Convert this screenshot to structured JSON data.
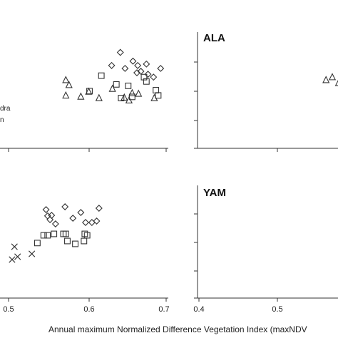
{
  "chart_data": [
    {
      "type": "scatter",
      "title": "",
      "xlim": [
        0.45,
        0.7
      ],
      "ylim": [
        0,
        4
      ],
      "legend": [
        "dra",
        "n"
      ],
      "legend_placement": "left",
      "series": [
        {
          "marker": "triangle",
          "points": [
            [
              0.573,
              2.35
            ],
            [
              0.577,
              2.18
            ],
            [
              0.573,
              1.82
            ],
            [
              0.592,
              1.78
            ],
            [
              0.602,
              1.95
            ],
            [
              0.615,
              1.73
            ],
            [
              0.632,
              2.05
            ],
            [
              0.647,
              1.75
            ],
            [
              0.653,
              1.65
            ],
            [
              0.657,
              1.9
            ],
            [
              0.665,
              1.88
            ],
            [
              0.685,
              1.73
            ]
          ]
        },
        {
          "marker": "square",
          "points": [
            [
              0.603,
              1.97
            ],
            [
              0.618,
              2.5
            ],
            [
              0.637,
              2.2
            ],
            [
              0.643,
              1.73
            ],
            [
              0.652,
              2.15
            ],
            [
              0.657,
              1.77
            ],
            [
              0.672,
              2.45
            ],
            [
              0.675,
              2.3
            ],
            [
              0.687,
              2.0
            ],
            [
              0.69,
              1.82
            ]
          ]
        },
        {
          "marker": "diamond",
          "points": [
            [
              0.631,
              2.85
            ],
            [
              0.642,
              3.3
            ],
            [
              0.648,
              2.75
            ],
            [
              0.658,
              3.0
            ],
            [
              0.664,
              2.85
            ],
            [
              0.668,
              2.65
            ],
            [
              0.675,
              2.9
            ],
            [
              0.684,
              2.45
            ],
            [
              0.693,
              2.75
            ],
            [
              0.677,
              2.55
            ],
            [
              0.663,
              2.6
            ]
          ]
        }
      ]
    },
    {
      "type": "scatter",
      "title": "ALA",
      "xlim": [
        0.4,
        0.6
      ],
      "ylim": [
        0,
        4
      ],
      "series": [
        {
          "marker": "triangle",
          "points": [
            [
              0.562,
              2.35
            ],
            [
              0.57,
              2.45
            ],
            [
              0.578,
              2.25
            ]
          ]
        }
      ]
    },
    {
      "type": "scatter",
      "title": "",
      "xlim": [
        0.45,
        0.7
      ],
      "ylim": [
        0,
        4
      ],
      "series": [
        {
          "marker": "cross",
          "points": [
            [
              0.505,
              1.35
            ],
            [
              0.508,
              1.8
            ],
            [
              0.512,
              1.45
            ],
            [
              0.53,
              1.55
            ]
          ]
        },
        {
          "marker": "square",
          "points": [
            [
              0.537,
              1.93
            ],
            [
              0.545,
              2.2
            ],
            [
              0.55,
              2.2
            ],
            [
              0.558,
              2.25
            ],
            [
              0.57,
              2.25
            ],
            [
              0.573,
              2.25
            ],
            [
              0.585,
              1.9
            ],
            [
              0.596,
              2.0
            ],
            [
              0.597,
              2.25
            ],
            [
              0.6,
              2.2
            ],
            [
              0.575,
              2.0
            ]
          ]
        },
        {
          "marker": "diamond",
          "points": [
            [
              0.548,
              3.1
            ],
            [
              0.55,
              2.88
            ],
            [
              0.553,
              2.75
            ],
            [
              0.555,
              2.9
            ],
            [
              0.56,
              2.6
            ],
            [
              0.572,
              3.2
            ],
            [
              0.582,
              2.8
            ],
            [
              0.592,
              3.0
            ],
            [
              0.598,
              2.65
            ],
            [
              0.606,
              2.65
            ],
            [
              0.612,
              2.7
            ],
            [
              0.615,
              3.15
            ]
          ]
        }
      ]
    },
    {
      "type": "scatter",
      "title": "YAM",
      "xlim": [
        0.4,
        0.6
      ],
      "ylim": [
        0,
        4
      ],
      "series": []
    }
  ],
  "axes": {
    "bottom_left_xticks": [
      "0.5",
      "0.6",
      "0.7"
    ],
    "bottom_right_xticks": [
      "0.4",
      "0.5"
    ],
    "xlabel": "Annual maximum Normalized Difference Vegetation Index (maxNDV"
  }
}
